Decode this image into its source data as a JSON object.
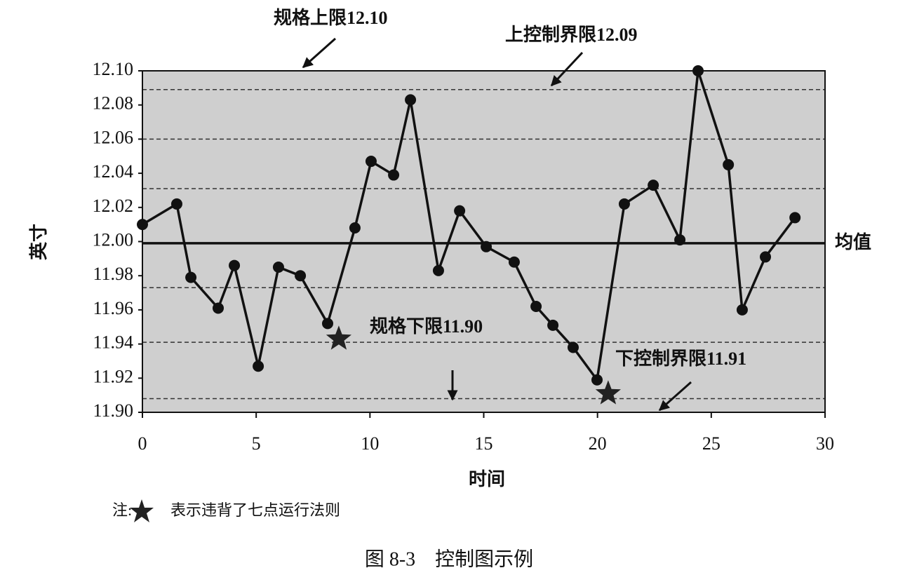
{
  "chart_data": {
    "type": "line",
    "x": [
      0,
      1.51,
      2.13,
      3.33,
      4.04,
      5.09,
      5.98,
      6.94,
      8.14,
      9.34,
      10.05,
      11.04,
      11.78,
      13.01,
      13.94,
      15.11,
      16.34,
      17.3,
      18.04,
      18.93,
      19.98,
      21.18,
      22.45,
      23.62,
      24.42,
      25.75,
      26.36,
      27.38,
      28.68
    ],
    "series": [
      {
        "color": "#111111",
        "values": [
          12.01,
          12.022,
          11.979,
          11.961,
          11.986,
          11.927,
          11.985,
          11.98,
          11.952,
          12.008,
          12.047,
          12.039,
          12.083,
          11.983,
          12.018,
          11.997,
          11.988,
          11.962,
          11.951,
          11.938,
          11.919,
          12.022,
          12.033,
          12.001,
          12.1,
          12.045,
          11.96,
          11.991,
          12.014
        ]
      }
    ],
    "violations": {
      "x": [
        8.63,
        20.47
      ],
      "values": [
        11.943,
        11.911
      ]
    },
    "dashed_lines": [
      12.089,
      12.06,
      12.031,
      11.973,
      11.941,
      11.908
    ],
    "mean_line": 11.999,
    "xlim": [
      0,
      30
    ],
    "ylim": [
      11.9,
      12.1
    ],
    "xticks": [
      0,
      5,
      10,
      15,
      20,
      25,
      30
    ],
    "yticks": [
      {
        "value": 11.9,
        "label": "11.90"
      },
      11.92,
      11.94,
      11.96,
      11.98,
      {
        "value": 12.0,
        "label": "12.00"
      },
      12.02,
      12.04,
      12.06,
      12.08,
      {
        "value": 12.1,
        "label": "12.10"
      }
    ],
    "xlabel": "时间",
    "ylabel": "英寸",
    "annotations": [
      "规格上限12.10",
      "上控制界限12.09",
      "均值",
      "规格下限11.90",
      "下控制界限11.91"
    ],
    "plot_color": "#cfcfcf"
  },
  "note": {
    "prefix": "注:",
    "text": "表示违背了七点运行法则"
  },
  "caption": "图 8-3　控制图示例"
}
